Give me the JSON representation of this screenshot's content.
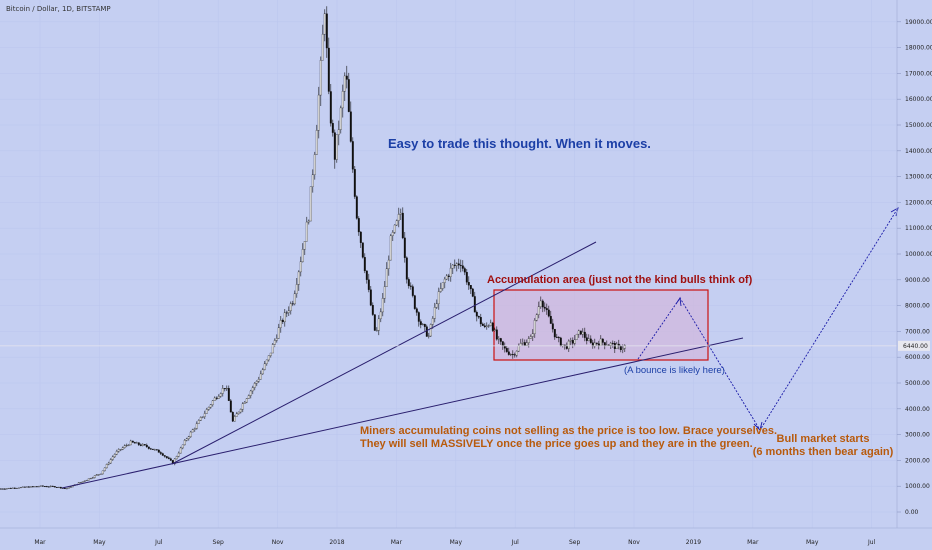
{
  "header": {
    "title": "Bitcoin / Dollar, 1D, BITSTAMP"
  },
  "chart_data": {
    "type": "candlestick",
    "title": "Bitcoin / Dollar, 1D, BITSTAMP",
    "y_ticks": [
      "0.00",
      "1000.00",
      "2000.00",
      "3000.00",
      "4000.00",
      "5000.00",
      "6000.00",
      "7000.00",
      "8000.00",
      "9000.00",
      "10000.00",
      "11000.00",
      "12000.00",
      "13000.00",
      "14000.00",
      "15000.00",
      "16000.00",
      "17000.00",
      "18000.00",
      "19000.00"
    ],
    "x_ticks": [
      "Mar",
      "May",
      "Jul",
      "Sep",
      "Nov",
      "2018",
      "Mar",
      "May",
      "Jul",
      "Sep",
      "Nov",
      "2019",
      "Mar",
      "May",
      "Jul"
    ],
    "last_price": "6440.00",
    "price_path": [
      [
        0,
        900
      ],
      [
        40,
        1000
      ],
      [
        55,
        980
      ],
      [
        65,
        900
      ],
      [
        80,
        1150
      ],
      [
        100,
        1500
      ],
      [
        115,
        2300
      ],
      [
        130,
        2700
      ],
      [
        145,
        2550
      ],
      [
        160,
        2300
      ],
      [
        172,
        1900
      ],
      [
        185,
        2800
      ],
      [
        198,
        3500
      ],
      [
        212,
        4300
      ],
      [
        225,
        4900
      ],
      [
        232,
        3500
      ],
      [
        245,
        4400
      ],
      [
        258,
        5200
      ],
      [
        268,
        6000
      ],
      [
        280,
        7300
      ],
      [
        292,
        8200
      ],
      [
        300,
        9800
      ],
      [
        308,
        11500
      ],
      [
        315,
        14500
      ],
      [
        320,
        17200
      ],
      [
        324,
        19600
      ],
      [
        328,
        16000
      ],
      [
        334,
        13800
      ],
      [
        340,
        15500
      ],
      [
        345,
        17200
      ],
      [
        350,
        14200
      ],
      [
        356,
        11500
      ],
      [
        362,
        10000
      ],
      [
        368,
        8500
      ],
      [
        375,
        6800
      ],
      [
        382,
        8200
      ],
      [
        390,
        10500
      ],
      [
        400,
        11600
      ],
      [
        406,
        9200
      ],
      [
        414,
        8000
      ],
      [
        420,
        7300
      ],
      [
        428,
        6800
      ],
      [
        436,
        8200
      ],
      [
        444,
        9000
      ],
      [
        452,
        9500
      ],
      [
        460,
        9700
      ],
      [
        468,
        8800
      ],
      [
        476,
        7600
      ],
      [
        484,
        7100
      ],
      [
        490,
        7400
      ],
      [
        496,
        6700
      ],
      [
        504,
        6300
      ],
      [
        512,
        6100
      ],
      [
        520,
        6500
      ],
      [
        530,
        6700
      ],
      [
        540,
        8300
      ],
      [
        548,
        7500
      ],
      [
        556,
        6700
      ],
      [
        564,
        6400
      ],
      [
        572,
        6600
      ],
      [
        580,
        7000
      ],
      [
        590,
        6500
      ],
      [
        600,
        6600
      ],
      [
        610,
        6500
      ],
      [
        618,
        6350
      ],
      [
        625,
        6440
      ]
    ],
    "annotations": {
      "headline": "Easy to trade this thought. When it moves.",
      "accumulation": "Accumulation area (just not the kind bulls think of)",
      "bounce": "(A bounce is likely here)",
      "miners_line1": "Miners accumulating coins not selling as the price is too low. Brace yourselves.",
      "miners_line2_pre": "They will sell ",
      "miners_line2_bold": "MASSIVELY",
      "miners_line2_post": " once the price goes up and they are in the green.",
      "bull_line1": "Bull market starts",
      "bull_line2": "(6 months then bear again)"
    },
    "grid": true,
    "colors": {
      "background": "#c5cff2",
      "candles": "#111111",
      "trendlines": "#2a1f6e",
      "box_fill": "#d0b8dd",
      "box_stroke": "#cc1111",
      "forecast_path": "#1a1aa8",
      "text_blue": "#1c3fa6",
      "text_red": "#a01010",
      "text_orange": "#b85a0c"
    }
  }
}
